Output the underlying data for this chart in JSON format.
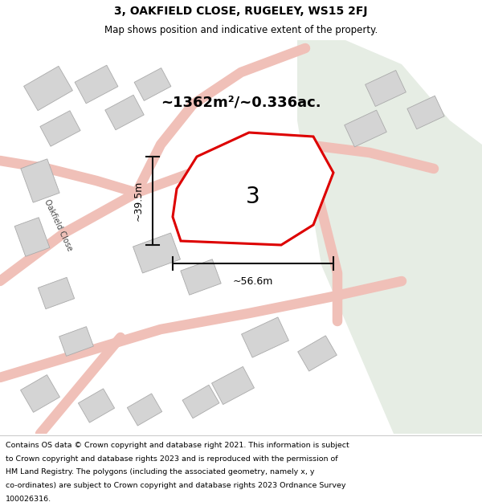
{
  "title_line1": "3, OAKFIELD CLOSE, RUGELEY, WS15 2FJ",
  "title_line2": "Map shows position and indicative extent of the property.",
  "area_text": "~1362m²/~0.336ac.",
  "width_label": "~56.6m",
  "height_label": "~39.5m",
  "plot_number": "3",
  "footer_lines": [
    "Contains OS data © Crown copyright and database right 2021. This information is subject",
    "to Crown copyright and database rights 2023 and is reproduced with the permission of",
    "HM Land Registry. The polygons (including the associated geometry, namely x, y",
    "co-ordinates) are subject to Crown copyright and database rights 2023 Ordnance Survey",
    "100026316."
  ],
  "road_color": "#f0c0b8",
  "building_color": "#d4d4d4",
  "building_edge": "#aaaaaa",
  "green_color": "#e6ede4",
  "red_color": "#dd0000",
  "dim_line_color": "#111111",
  "map_bg": "#ffffff",
  "title_bg": "#ffffff",
  "footer_bg": "#ffffff",
  "road_lw": 9
}
